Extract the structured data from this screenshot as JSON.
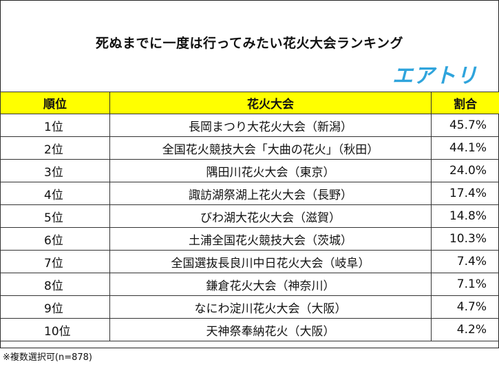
{
  "title": "死ぬまでに一度は行ってみたい花火大会ランキング",
  "logo_text": "エアトリ",
  "accent_color": "#ffff00",
  "logo_color": "#2fa4dc",
  "chart_data": {
    "type": "table",
    "columns": [
      "順位",
      "花火大会",
      "割合"
    ],
    "rows": [
      {
        "rank": "1位",
        "name": "長岡まつり大花火大会（新潟）",
        "share": "45.7%"
      },
      {
        "rank": "2位",
        "name": "全国花火競技大会「大曲の花火」（秋田）",
        "share": "44.1%"
      },
      {
        "rank": "3位",
        "name": "隅田川花火大会（東京）",
        "share": "24.0%"
      },
      {
        "rank": "4位",
        "name": "諏訪湖祭湖上花火大会（長野）",
        "share": "17.4%"
      },
      {
        "rank": "5位",
        "name": "びわ湖大花火大会（滋賀）",
        "share": "14.8%"
      },
      {
        "rank": "6位",
        "name": "土浦全国花火競技大会（茨城）",
        "share": "10.3%"
      },
      {
        "rank": "7位",
        "name": "全国選抜長良川中日花火大会（岐阜）",
        "share": "7.4%"
      },
      {
        "rank": "8位",
        "name": "鎌倉花火大会（神奈川）",
        "share": "7.1%"
      },
      {
        "rank": "9位",
        "name": "なにわ淀川花火大会（大阪）",
        "share": "4.7%"
      },
      {
        "rank": "10位",
        "name": "天神祭奉納花火（大阪）",
        "share": "4.2%"
      }
    ]
  },
  "footnote": "※複数選択可(n=878)"
}
